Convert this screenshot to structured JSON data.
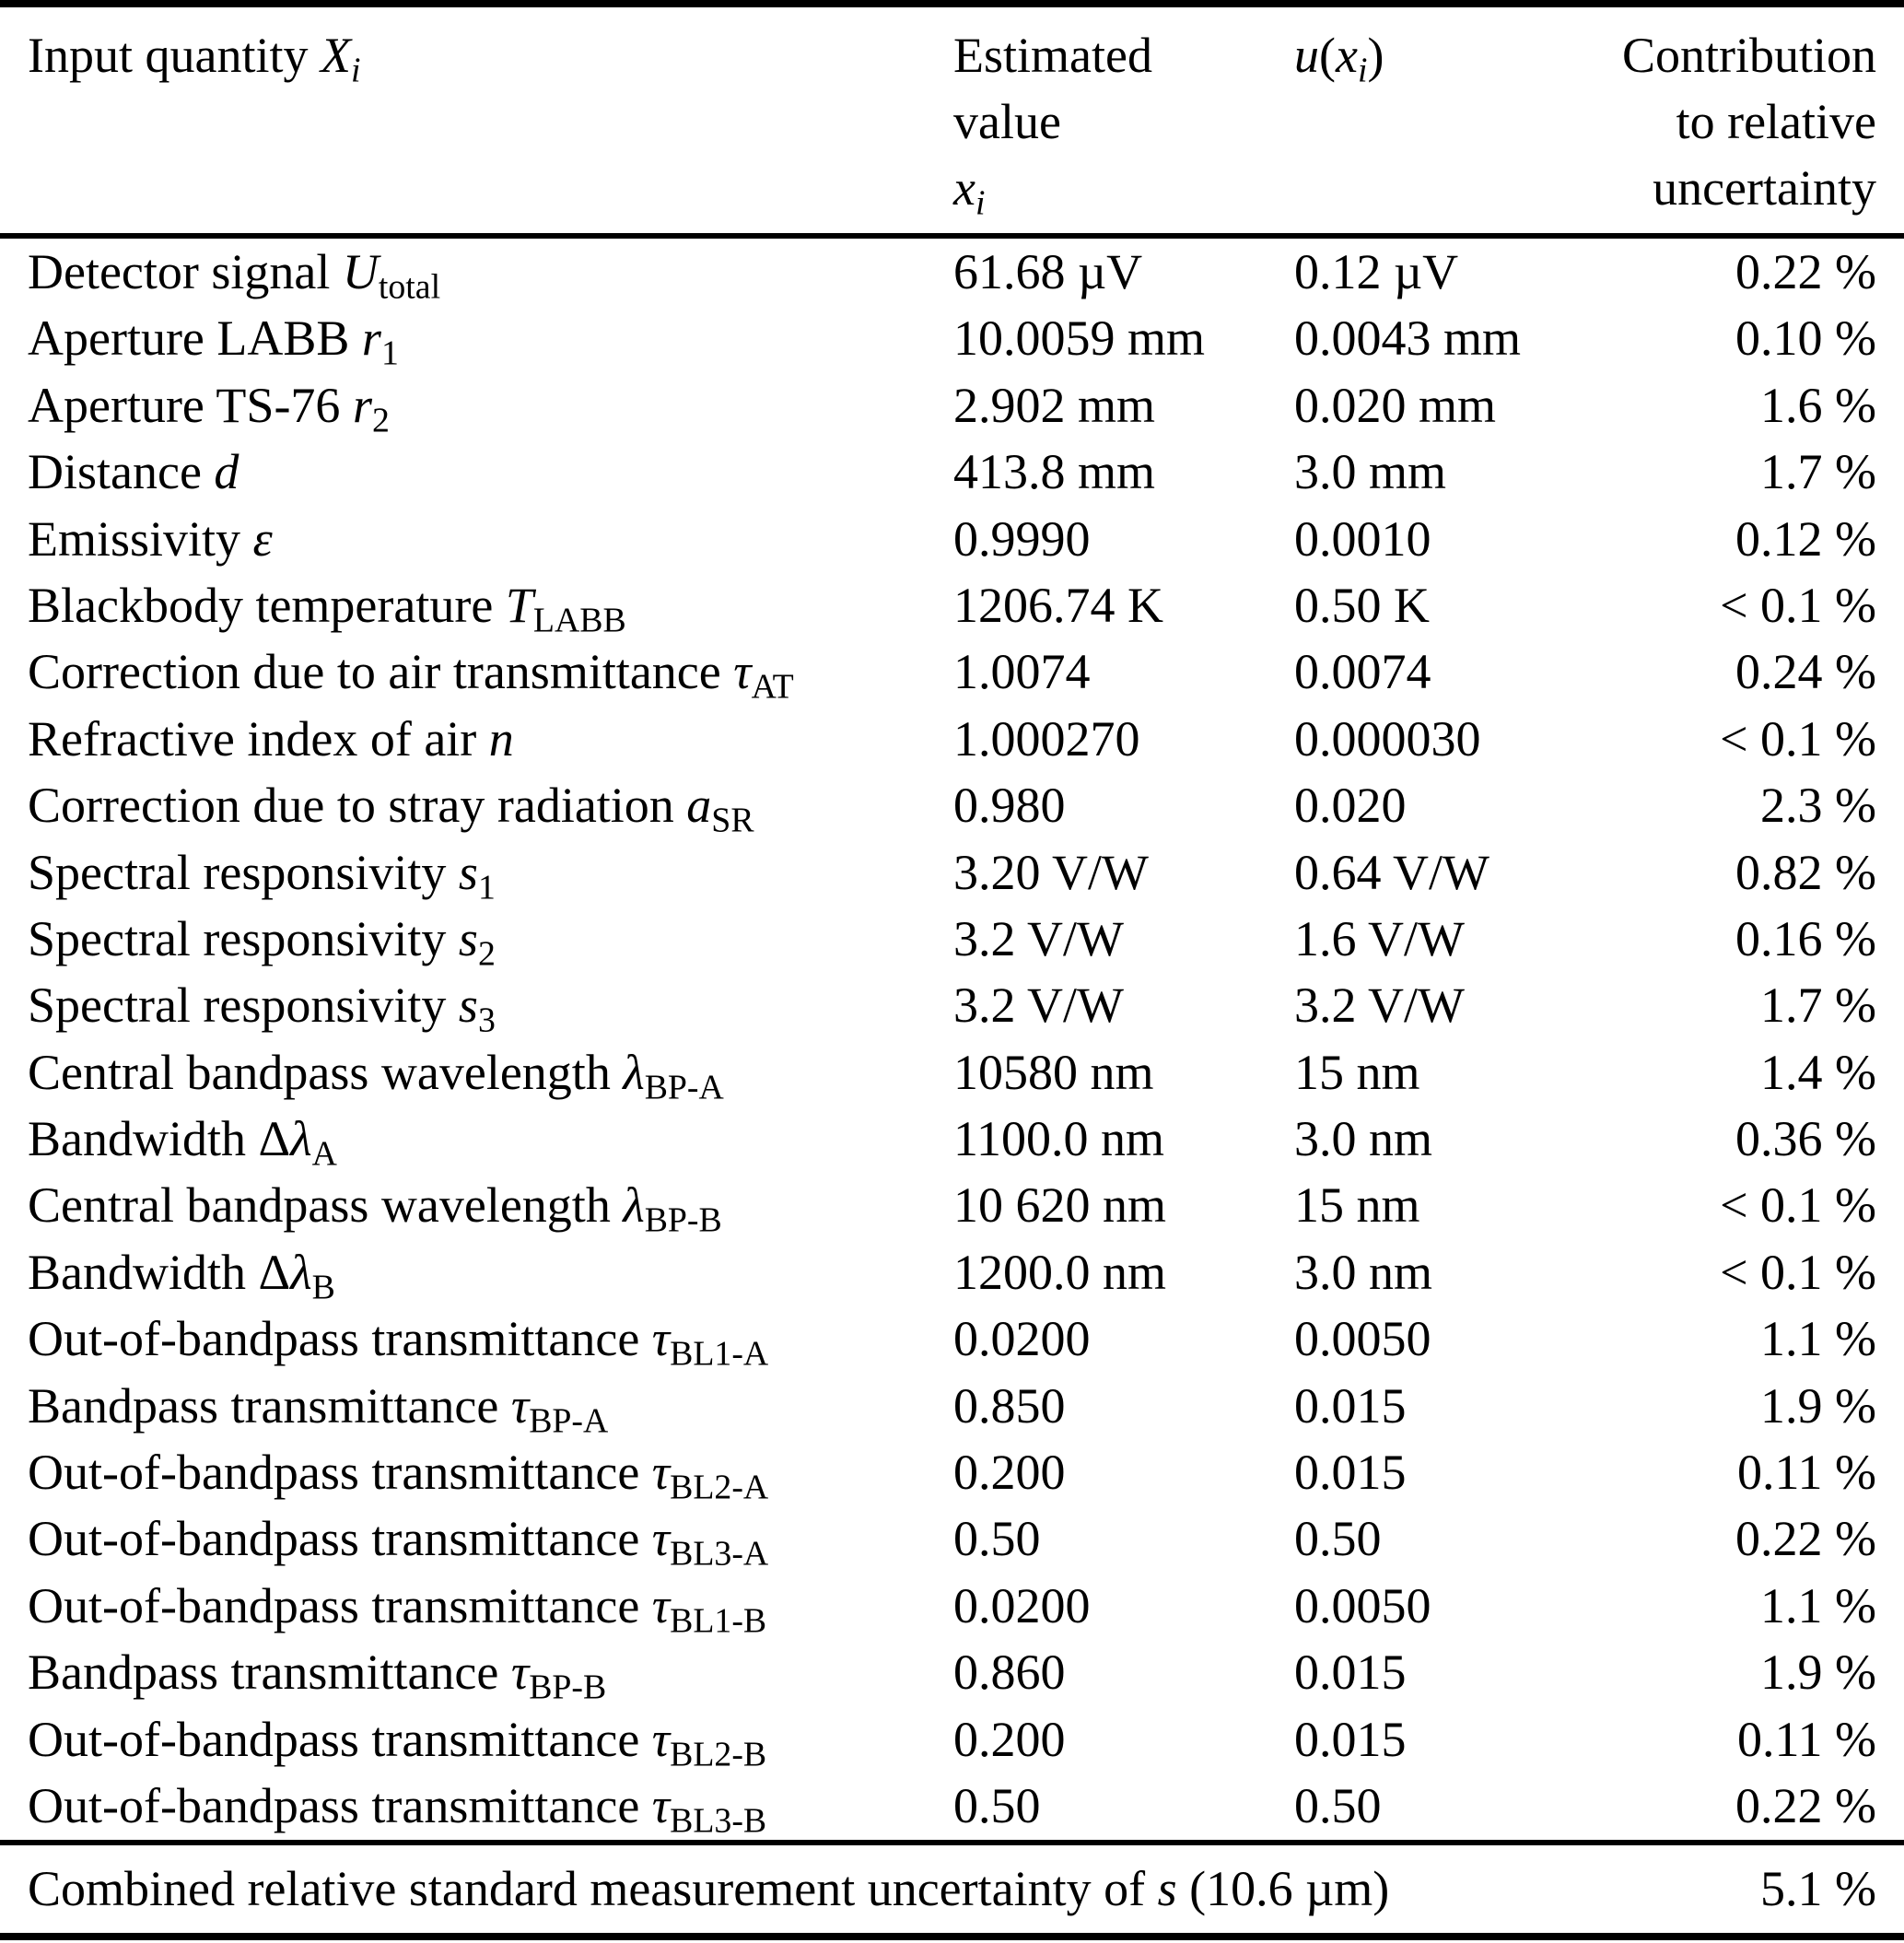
{
  "colors": {
    "text": "#000000",
    "background": "#ffffff",
    "rules": "#000000"
  },
  "table": {
    "header": {
      "col1": [
        [
          "r",
          "Input quantity "
        ],
        [
          "i",
          "X"
        ],
        [
          "isub",
          "i"
        ]
      ],
      "col2_lines": [
        [
          [
            "r",
            "Estimated"
          ]
        ],
        [
          [
            "r",
            "value"
          ]
        ],
        [
          [
            "i",
            "x"
          ],
          [
            "isub",
            "i"
          ]
        ]
      ],
      "col3": [
        [
          "i",
          "u"
        ],
        [
          "r",
          "("
        ],
        [
          "i",
          "x"
        ],
        [
          "isub",
          "i"
        ],
        [
          "r",
          ")"
        ]
      ],
      "col4_lines": [
        "Contribution",
        "to relative",
        "uncertainty"
      ]
    },
    "rows": [
      {
        "label": [
          [
            "r",
            "Detector signal "
          ],
          [
            "i",
            "U"
          ],
          [
            "sub",
            "total"
          ]
        ],
        "value": "61.68 µV",
        "u": "0.12 µV",
        "contribution": "0.22 %"
      },
      {
        "label": [
          [
            "r",
            "Aperture LABB "
          ],
          [
            "i",
            "r"
          ],
          [
            "sub",
            "1"
          ]
        ],
        "value": "10.0059 mm",
        "u": "0.0043 mm",
        "contribution": "0.10 %"
      },
      {
        "label": [
          [
            "r",
            "Aperture TS-76 "
          ],
          [
            "i",
            "r"
          ],
          [
            "sub",
            "2"
          ]
        ],
        "value": "2.902 mm",
        "u": "0.020 mm",
        "contribution": "1.6 %"
      },
      {
        "label": [
          [
            "r",
            "Distance "
          ],
          [
            "i",
            "d"
          ]
        ],
        "value": "413.8 mm",
        "u": "3.0 mm",
        "contribution": "1.7 %"
      },
      {
        "label": [
          [
            "r",
            "Emissivity "
          ],
          [
            "i",
            "ε"
          ]
        ],
        "value": "0.9990",
        "u": "0.0010",
        "contribution": "0.12 %"
      },
      {
        "label": [
          [
            "r",
            "Blackbody temperature "
          ],
          [
            "i",
            "T"
          ],
          [
            "sub",
            "LABB"
          ]
        ],
        "value": "1206.74 K",
        "u": "0.50 K",
        "contribution": "< 0.1 %"
      },
      {
        "label": [
          [
            "r",
            "Correction due to air transmittance "
          ],
          [
            "i",
            "τ"
          ],
          [
            "sub",
            "AT"
          ]
        ],
        "value": "1.0074",
        "u": "0.0074",
        "contribution": "0.24 %"
      },
      {
        "label": [
          [
            "r",
            "Refractive index of air "
          ],
          [
            "i",
            "n"
          ]
        ],
        "value": "1.000270",
        "u": "0.000030",
        "contribution": "< 0.1 %"
      },
      {
        "label": [
          [
            "r",
            "Correction due to stray radiation "
          ],
          [
            "i",
            "a"
          ],
          [
            "sub",
            "SR"
          ]
        ],
        "value": "0.980",
        "u": "0.020",
        "contribution": "2.3 %"
      },
      {
        "label": [
          [
            "r",
            "Spectral responsivity "
          ],
          [
            "i",
            "s"
          ],
          [
            "sub",
            "1"
          ]
        ],
        "value": "3.20 V/W",
        "u": "0.64 V/W",
        "contribution": "0.82 %"
      },
      {
        "label": [
          [
            "r",
            "Spectral responsivity "
          ],
          [
            "i",
            "s"
          ],
          [
            "sub",
            "2"
          ]
        ],
        "value": "3.2 V/W",
        "u": "1.6 V/W",
        "contribution": "0.16 %"
      },
      {
        "label": [
          [
            "r",
            "Spectral responsivity "
          ],
          [
            "i",
            "s"
          ],
          [
            "sub",
            "3"
          ]
        ],
        "value": "3.2 V/W",
        "u": "3.2 V/W",
        "contribution": "1.7 %"
      },
      {
        "label": [
          [
            "r",
            "Central bandpass wavelength "
          ],
          [
            "i",
            "λ"
          ],
          [
            "sub",
            "BP-A"
          ]
        ],
        "value": "10580 nm",
        "u": "15 nm",
        "contribution": "1.4 %"
      },
      {
        "label": [
          [
            "r",
            "Bandwidth Δ"
          ],
          [
            "i",
            "λ"
          ],
          [
            "sub",
            "A"
          ]
        ],
        "value": "1100.0 nm",
        "u": "3.0 nm",
        "contribution": "0.36 %"
      },
      {
        "label": [
          [
            "r",
            "Central bandpass wavelength "
          ],
          [
            "i",
            "λ"
          ],
          [
            "sub",
            "BP-B"
          ]
        ],
        "value": "10 620 nm",
        "u": "15 nm",
        "contribution": "< 0.1 %"
      },
      {
        "label": [
          [
            "r",
            "Bandwidth Δ"
          ],
          [
            "i",
            "λ"
          ],
          [
            "sub",
            "B"
          ]
        ],
        "value": "1200.0 nm",
        "u": "3.0 nm",
        "contribution": "< 0.1 %"
      },
      {
        "label": [
          [
            "r",
            "Out-of-bandpass transmittance "
          ],
          [
            "i",
            "τ"
          ],
          [
            "sub",
            "BL1-A"
          ]
        ],
        "value": "0.0200",
        "u": "0.0050",
        "contribution": "1.1 %"
      },
      {
        "label": [
          [
            "r",
            "Bandpass transmittance "
          ],
          [
            "i",
            "τ"
          ],
          [
            "sub",
            "BP-A"
          ]
        ],
        "value": "0.850",
        "u": "0.015",
        "contribution": "1.9 %"
      },
      {
        "label": [
          [
            "r",
            "Out-of-bandpass transmittance "
          ],
          [
            "i",
            "τ"
          ],
          [
            "sub",
            "BL2-A"
          ]
        ],
        "value": "0.200",
        "u": "0.015",
        "contribution": "0.11 %"
      },
      {
        "label": [
          [
            "r",
            "Out-of-bandpass transmittance "
          ],
          [
            "i",
            "τ"
          ],
          [
            "sub",
            "BL3-A"
          ]
        ],
        "value": "0.50",
        "u": "0.50",
        "contribution": "0.22 %"
      },
      {
        "label": [
          [
            "r",
            "Out-of-bandpass transmittance "
          ],
          [
            "i",
            "τ"
          ],
          [
            "sub",
            "BL1-B"
          ]
        ],
        "value": "0.0200",
        "u": "0.0050",
        "contribution": "1.1 %"
      },
      {
        "label": [
          [
            "r",
            "Bandpass transmittance "
          ],
          [
            "i",
            "τ"
          ],
          [
            "sub",
            "BP-B"
          ]
        ],
        "value": "0.860",
        "u": "0.015",
        "contribution": "1.9 %"
      },
      {
        "label": [
          [
            "r",
            "Out-of-bandpass transmittance "
          ],
          [
            "i",
            "τ"
          ],
          [
            "sub",
            "BL2-B"
          ]
        ],
        "value": "0.200",
        "u": "0.015",
        "contribution": "0.11 %"
      },
      {
        "label": [
          [
            "r",
            "Out-of-bandpass transmittance "
          ],
          [
            "i",
            "τ"
          ],
          [
            "sub",
            "BL3-B"
          ]
        ],
        "value": "0.50",
        "u": "0.50",
        "contribution": "0.22 %"
      }
    ],
    "footer": {
      "label": [
        [
          "r",
          "Combined relative standard measurement uncertainty of "
        ],
        [
          "i",
          "s"
        ],
        [
          "r",
          " (10.6 µm)"
        ]
      ],
      "contribution": "5.1 %"
    }
  }
}
